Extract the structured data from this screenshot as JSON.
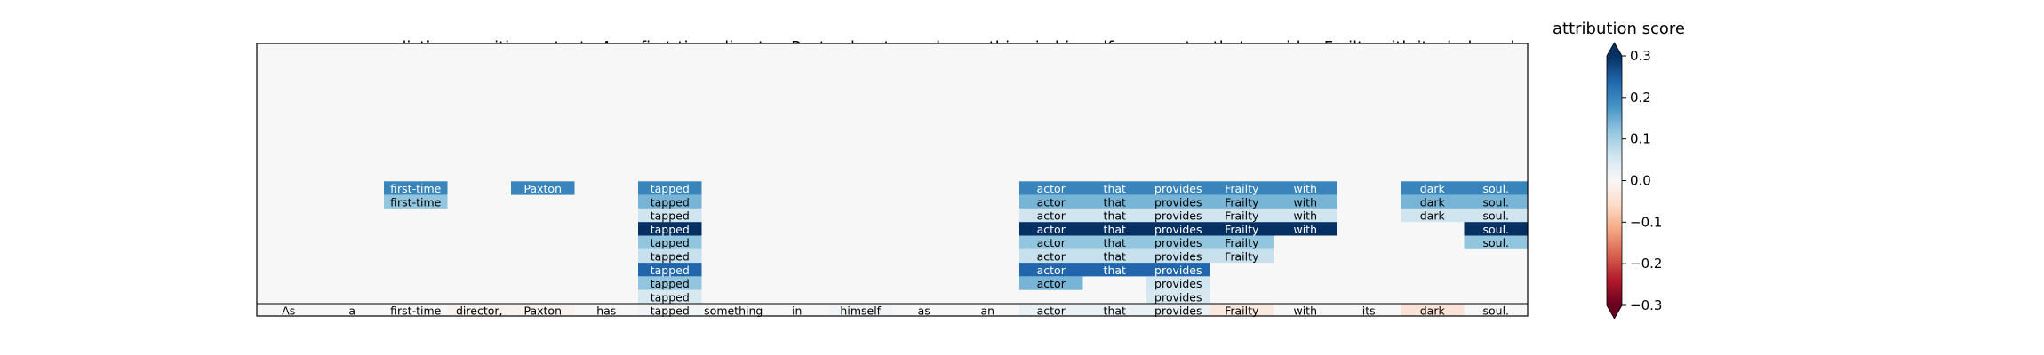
{
  "header": {
    "prediction_label": "prediction:",
    "prediction_value": "positive",
    "text_label": "text:",
    "text_value": "As a first-time director, Paxton has tapped something in himself as an actor that provides Frailty with its dark soul."
  },
  "colorbar": {
    "title": "attribution score",
    "ticks": [
      0.3,
      0.2,
      0.1,
      0.0,
      -0.1,
      -0.2,
      -0.3
    ],
    "tick_labels": [
      "0.3",
      "0.2",
      "0.1",
      "0.0",
      "−0.1",
      "−0.2",
      "−0.3"
    ],
    "range": [
      -0.3,
      0.3
    ],
    "colormap": "RdBu",
    "extend": "both"
  },
  "chart_data": {
    "type": "heatmap",
    "tokens": [
      "As",
      "a",
      "first-time",
      "director,",
      "Paxton",
      "has",
      "tapped",
      "something",
      "in",
      "himself",
      "as",
      "an",
      "actor",
      "that",
      "provides",
      "Frailty",
      "with",
      "its",
      "dark",
      "soul."
    ],
    "baseline_scores": [
      0.0,
      0.0,
      0.0,
      -0.01,
      -0.01,
      0.0,
      0.01,
      0.0,
      0.0,
      0.01,
      0.0,
      0.0,
      0.02,
      0.02,
      0.02,
      -0.03,
      0.0,
      0.0,
      -0.04,
      0.0
    ],
    "rows": [
      [
        null,
        null,
        0.2,
        null,
        0.2,
        null,
        0.2,
        null,
        null,
        null,
        null,
        null,
        0.2,
        0.2,
        0.2,
        0.2,
        0.2,
        null,
        0.2,
        0.2
      ],
      [
        null,
        null,
        0.12,
        null,
        null,
        null,
        0.14,
        null,
        null,
        null,
        null,
        null,
        0.14,
        0.14,
        0.14,
        0.14,
        0.14,
        null,
        0.14,
        0.14
      ],
      [
        null,
        null,
        null,
        null,
        null,
        null,
        0.06,
        null,
        null,
        null,
        null,
        null,
        0.06,
        0.06,
        0.06,
        0.06,
        0.06,
        null,
        0.06,
        0.06
      ],
      [
        null,
        null,
        null,
        null,
        null,
        null,
        0.3,
        null,
        null,
        null,
        null,
        null,
        0.3,
        0.3,
        0.3,
        0.3,
        0.3,
        null,
        null,
        0.3
      ],
      [
        null,
        null,
        null,
        null,
        null,
        null,
        0.12,
        null,
        null,
        null,
        null,
        null,
        0.12,
        0.12,
        0.12,
        0.12,
        null,
        null,
        null,
        0.12
      ],
      [
        null,
        null,
        null,
        null,
        null,
        null,
        0.07,
        null,
        null,
        null,
        null,
        null,
        0.07,
        0.07,
        0.07,
        0.07,
        null,
        null,
        null,
        null
      ],
      [
        null,
        null,
        null,
        null,
        null,
        null,
        0.24,
        null,
        null,
        null,
        null,
        null,
        0.24,
        0.24,
        0.24,
        null,
        null,
        null,
        null,
        null
      ],
      [
        null,
        null,
        null,
        null,
        null,
        null,
        0.12,
        null,
        null,
        null,
        null,
        null,
        0.14,
        null,
        0.06,
        null,
        null,
        null,
        null,
        null
      ],
      [
        null,
        null,
        null,
        null,
        null,
        null,
        0.05,
        null,
        null,
        null,
        null,
        null,
        null,
        null,
        0.05,
        null,
        null,
        null,
        null,
        null
      ]
    ]
  }
}
